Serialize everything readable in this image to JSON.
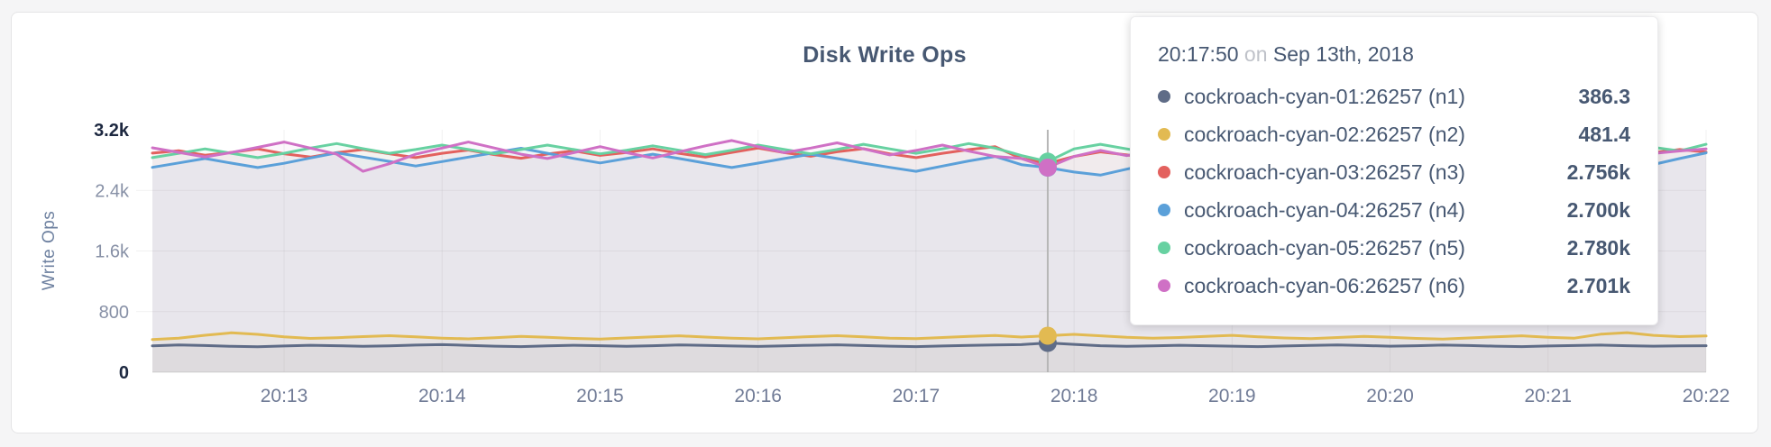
{
  "chart_data": {
    "type": "line",
    "title": "Disk Write Ops",
    "ylabel": "Write Ops",
    "xlabel": "",
    "ylim": [
      0,
      3200
    ],
    "x_domain_s": [
      0,
      590
    ],
    "sample_step_s": 10,
    "grid": "on",
    "legend_position": "tooltip-overlay",
    "x_seconds": [
      0,
      10,
      20,
      30,
      40,
      50,
      60,
      70,
      80,
      90,
      100,
      110,
      120,
      130,
      140,
      150,
      160,
      170,
      180,
      190,
      200,
      210,
      220,
      230,
      240,
      250,
      260,
      270,
      280,
      290,
      300,
      310,
      320,
      330,
      340,
      350,
      360,
      370,
      380,
      390,
      400,
      410,
      420,
      430,
      440,
      450,
      460,
      470,
      480,
      490,
      500,
      510,
      520,
      530,
      540,
      550,
      560,
      570,
      580,
      590
    ],
    "x_ticks": [
      {
        "label": "20:13",
        "t": 50
      },
      {
        "label": "20:14",
        "t": 110
      },
      {
        "label": "20:15",
        "t": 170
      },
      {
        "label": "20:16",
        "t": 230
      },
      {
        "label": "20:17",
        "t": 290
      },
      {
        "label": "20:18",
        "t": 350
      },
      {
        "label": "20:19",
        "t": 410
      },
      {
        "label": "20:20",
        "t": 470
      },
      {
        "label": "20:21",
        "t": 530
      },
      {
        "label": "20:22",
        "t": 590
      }
    ],
    "y_ticks": [
      {
        "label": "0",
        "value": 0,
        "emphasis": true,
        "gridline": false
      },
      {
        "label": "800",
        "value": 800,
        "emphasis": false,
        "gridline": true
      },
      {
        "label": "1.6k",
        "value": 1600,
        "emphasis": false,
        "gridline": true
      },
      {
        "label": "2.4k",
        "value": 2400,
        "emphasis": false,
        "gridline": true
      },
      {
        "label": "3.2k",
        "value": 3200,
        "emphasis": true,
        "gridline": false
      }
    ],
    "hover": {
      "t": 340,
      "index": 34,
      "time_label": "20:17:50"
    },
    "series": [
      {
        "name": "cockroach-cyan-01:26257 (n1)",
        "color": "#5f6c87",
        "values": [
          348,
          360,
          352,
          342,
          336,
          346,
          356,
          350,
          342,
          348,
          358,
          364,
          354,
          344,
          338,
          348,
          356,
          350,
          342,
          350,
          360,
          354,
          346,
          340,
          348,
          356,
          362,
          352,
          344,
          338,
          346,
          354,
          360,
          364,
          386.3,
          368,
          350,
          342,
          348,
          356,
          350,
          344,
          338,
          346,
          354,
          360,
          352,
          344,
          350,
          358,
          352,
          344,
          338,
          346,
          352,
          358,
          350,
          344,
          348,
          350
        ]
      },
      {
        "name": "cockroach-cyan-02:26257 (n2)",
        "color": "#e2ba52",
        "values": [
          432,
          448,
          488,
          520,
          500,
          468,
          446,
          456,
          470,
          482,
          466,
          450,
          440,
          456,
          472,
          462,
          446,
          438,
          452,
          468,
          480,
          464,
          448,
          440,
          456,
          470,
          482,
          466,
          450,
          442,
          458,
          472,
          484,
          464,
          481.4,
          500,
          480,
          460,
          448,
          458,
          474,
          486,
          468,
          452,
          444,
          458,
          474,
          462,
          446,
          438,
          452,
          468,
          480,
          462,
          450,
          502,
          522,
          486,
          470,
          478
        ]
      },
      {
        "name": "cockroach-cyan-03:26257 (n3)",
        "color": "#e3615e",
        "values": [
          2892,
          2924,
          2864,
          2902,
          2948,
          2884,
          2840,
          2898,
          2940,
          2882,
          2832,
          2890,
          2932,
          2872,
          2824,
          2880,
          2922,
          2862,
          2900,
          2948,
          2888,
          2840,
          2900,
          2958,
          2898,
          2850,
          2910,
          2950,
          2882,
          2832,
          2890,
          2938,
          2978,
          2820,
          2756,
          2848,
          2908,
          2868,
          2822,
          2880,
          2928,
          2870,
          2900,
          2948,
          2888,
          2842,
          2900,
          2938,
          2880,
          2832,
          2890,
          2928,
          2870,
          2908,
          2958,
          2900,
          2852,
          2898,
          2940,
          2906
        ]
      },
      {
        "name": "cockroach-cyan-04:26257 (n4)",
        "color": "#5ba0d9",
        "values": [
          2704,
          2762,
          2820,
          2760,
          2702,
          2758,
          2828,
          2896,
          2840,
          2782,
          2722,
          2780,
          2840,
          2898,
          2956,
          2890,
          2822,
          2762,
          2820,
          2878,
          2820,
          2760,
          2702,
          2760,
          2820,
          2878,
          2820,
          2760,
          2704,
          2652,
          2720,
          2788,
          2848,
          2740,
          2700,
          2642,
          2602,
          2680,
          2758,
          2820,
          2760,
          2702,
          2760,
          2828,
          2770,
          2712,
          2770,
          2838,
          2780,
          2722,
          2780,
          2848,
          2790,
          2732,
          2790,
          2858,
          2800,
          2742,
          2820,
          2896
        ]
      },
      {
        "name": "cockroach-cyan-05:26257 (n5)",
        "color": "#67d1a1",
        "values": [
          2832,
          2888,
          2948,
          2890,
          2832,
          2890,
          2958,
          3018,
          2950,
          2890,
          2940,
          2998,
          2940,
          2882,
          2940,
          2998,
          2940,
          2882,
          2930,
          2988,
          2930,
          2872,
          2930,
          2998,
          2940,
          2882,
          2940,
          3008,
          2948,
          2890,
          2948,
          3018,
          2958,
          2860,
          2780,
          2948,
          3008,
          2948,
          2890,
          2948,
          3008,
          2948,
          2890,
          2948,
          3018,
          2958,
          2900,
          2958,
          3018,
          2958,
          2900,
          2958,
          3028,
          2968,
          2910,
          2968,
          3028,
          2968,
          2920,
          3008
        ]
      },
      {
        "name": "cockroach-cyan-06:26257 (n6)",
        "color": "#cf70c5",
        "values": [
          2962,
          2902,
          2842,
          2900,
          2968,
          3038,
          2958,
          2878,
          2652,
          2752,
          2878,
          2958,
          3038,
          2958,
          2878,
          2820,
          2898,
          2978,
          2898,
          2828,
          2908,
          2988,
          3058,
          2978,
          2898,
          2958,
          3028,
          2948,
          2868,
          2928,
          2998,
          2918,
          2848,
          2820,
          2701,
          2848,
          2928,
          2858,
          2928,
          2998,
          2928,
          2858,
          2928,
          3008,
          2938,
          2868,
          2938,
          3008,
          2938,
          2868,
          2938,
          3008,
          2938,
          2878,
          2948,
          3018,
          2948,
          2888,
          2920,
          2948
        ]
      }
    ]
  },
  "tooltip": {
    "time": "20:17:50",
    "on_word": "on",
    "date": "Sep 13th, 2018",
    "rows": [
      {
        "label": "cockroach-cyan-01:26257 (n1)",
        "value": "386.3",
        "color": "#5f6c87"
      },
      {
        "label": "cockroach-cyan-02:26257 (n2)",
        "value": "481.4",
        "color": "#e2ba52"
      },
      {
        "label": "cockroach-cyan-03:26257 (n3)",
        "value": "2.756k",
        "color": "#e3615e"
      },
      {
        "label": "cockroach-cyan-04:26257 (n4)",
        "value": "2.700k",
        "color": "#5ba0d9"
      },
      {
        "label": "cockroach-cyan-05:26257 (n5)",
        "value": "2.780k",
        "color": "#67d1a1"
      },
      {
        "label": "cockroach-cyan-06:26257 (n6)",
        "value": "2.701k",
        "color": "#cf70c5"
      }
    ]
  }
}
